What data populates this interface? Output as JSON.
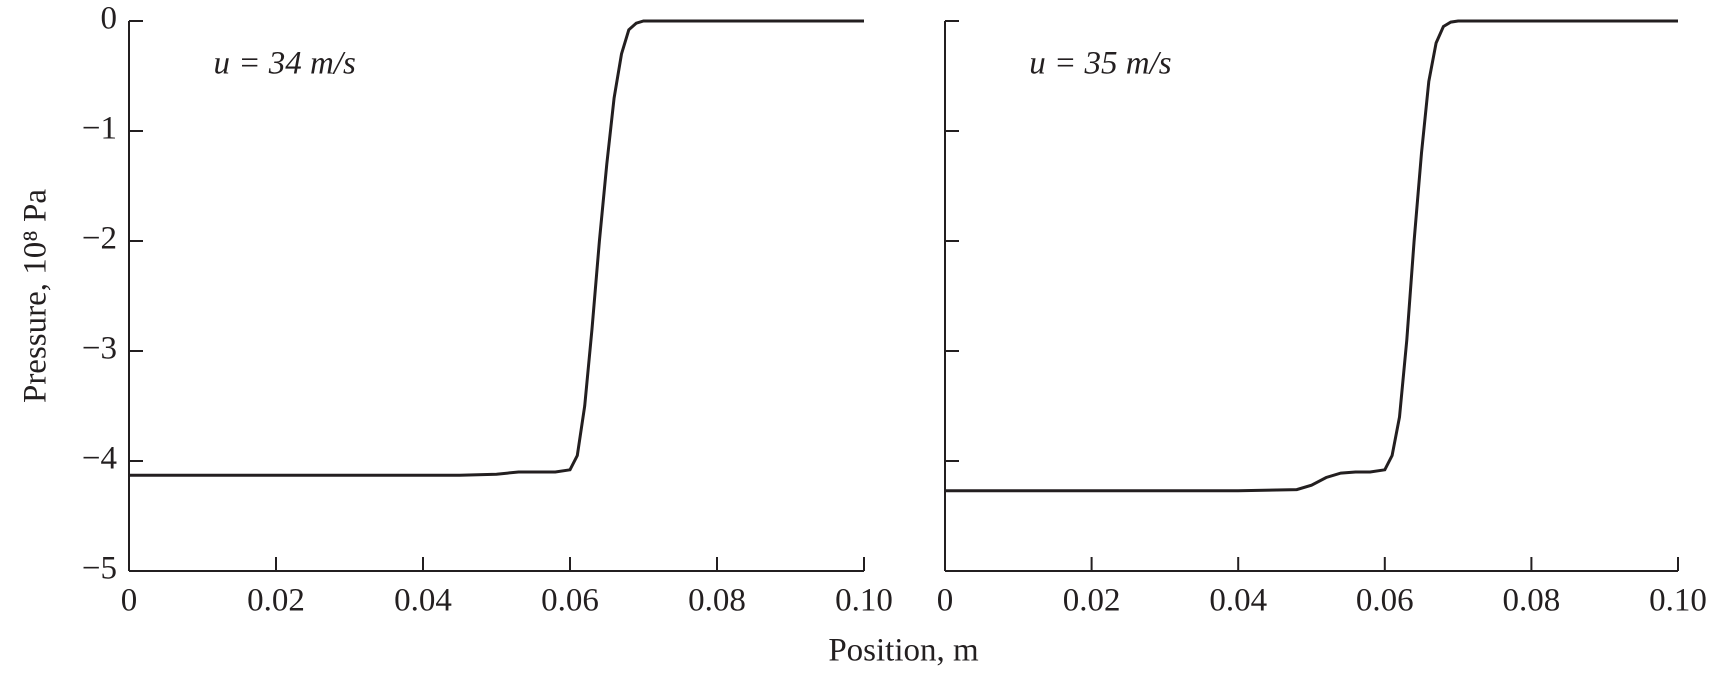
{
  "chart_data": [
    {
      "type": "line",
      "annotation": "u = 34 m/s",
      "ylabel": "Pressure, 10⁸ Pa",
      "xlabel": "Position, m",
      "color": "#231f20",
      "x": [
        0,
        0.01,
        0.02,
        0.03,
        0.04,
        0.045,
        0.05,
        0.053,
        0.055,
        0.058,
        0.06,
        0.061,
        0.062,
        0.063,
        0.064,
        0.065,
        0.066,
        0.067,
        0.068,
        0.069,
        0.07,
        0.075,
        0.08,
        0.09,
        0.1
      ],
      "values": [
        -4.13,
        -4.13,
        -4.13,
        -4.13,
        -4.13,
        -4.13,
        -4.12,
        -4.1,
        -4.1,
        -4.1,
        -4.08,
        -3.95,
        -3.5,
        -2.8,
        -2.0,
        -1.3,
        -0.7,
        -0.3,
        -0.08,
        -0.02,
        0,
        0,
        0,
        0,
        0
      ],
      "xlim": [
        0,
        0.1
      ],
      "ylim": [
        -5,
        0
      ],
      "xticks": [
        0,
        0.02,
        0.04,
        0.06,
        0.08,
        {
          "value": 0.1,
          "label": "0.10"
        }
      ],
      "yticks": [
        {
          "value": -5,
          "label": "−5"
        },
        {
          "value": -4,
          "label": "−4"
        },
        {
          "value": -3,
          "label": "−3"
        },
        {
          "value": -2,
          "label": "−2"
        },
        {
          "value": -1,
          "label": "−1"
        },
        0
      ]
    },
    {
      "type": "line",
      "annotation": "u = 35 m/s",
      "color": "#231f20",
      "x": [
        0,
        0.01,
        0.02,
        0.03,
        0.04,
        0.048,
        0.05,
        0.052,
        0.054,
        0.056,
        0.058,
        0.06,
        0.061,
        0.062,
        0.063,
        0.064,
        0.065,
        0.066,
        0.067,
        0.068,
        0.069,
        0.07,
        0.075,
        0.08,
        0.09,
        0.1
      ],
      "values": [
        -4.27,
        -4.27,
        -4.27,
        -4.27,
        -4.27,
        -4.26,
        -4.22,
        -4.15,
        -4.11,
        -4.1,
        -4.1,
        -4.08,
        -3.95,
        -3.6,
        -2.9,
        -2.0,
        -1.2,
        -0.55,
        -0.2,
        -0.05,
        -0.01,
        0,
        0,
        0,
        0,
        0
      ],
      "xlim": [
        0,
        0.1
      ],
      "ylim": [
        -5,
        0
      ],
      "xticks": [
        0,
        0.02,
        0.04,
        0.06,
        0.08,
        {
          "value": 0.1,
          "label": "0.10"
        }
      ],
      "yticks": [
        {
          "value": -5,
          "label": ""
        },
        {
          "value": -4,
          "label": ""
        },
        {
          "value": -3,
          "label": ""
        },
        {
          "value": -2,
          "label": ""
        },
        {
          "value": -1,
          "label": ""
        },
        {
          "value": 0,
          "label": ""
        }
      ]
    }
  ]
}
